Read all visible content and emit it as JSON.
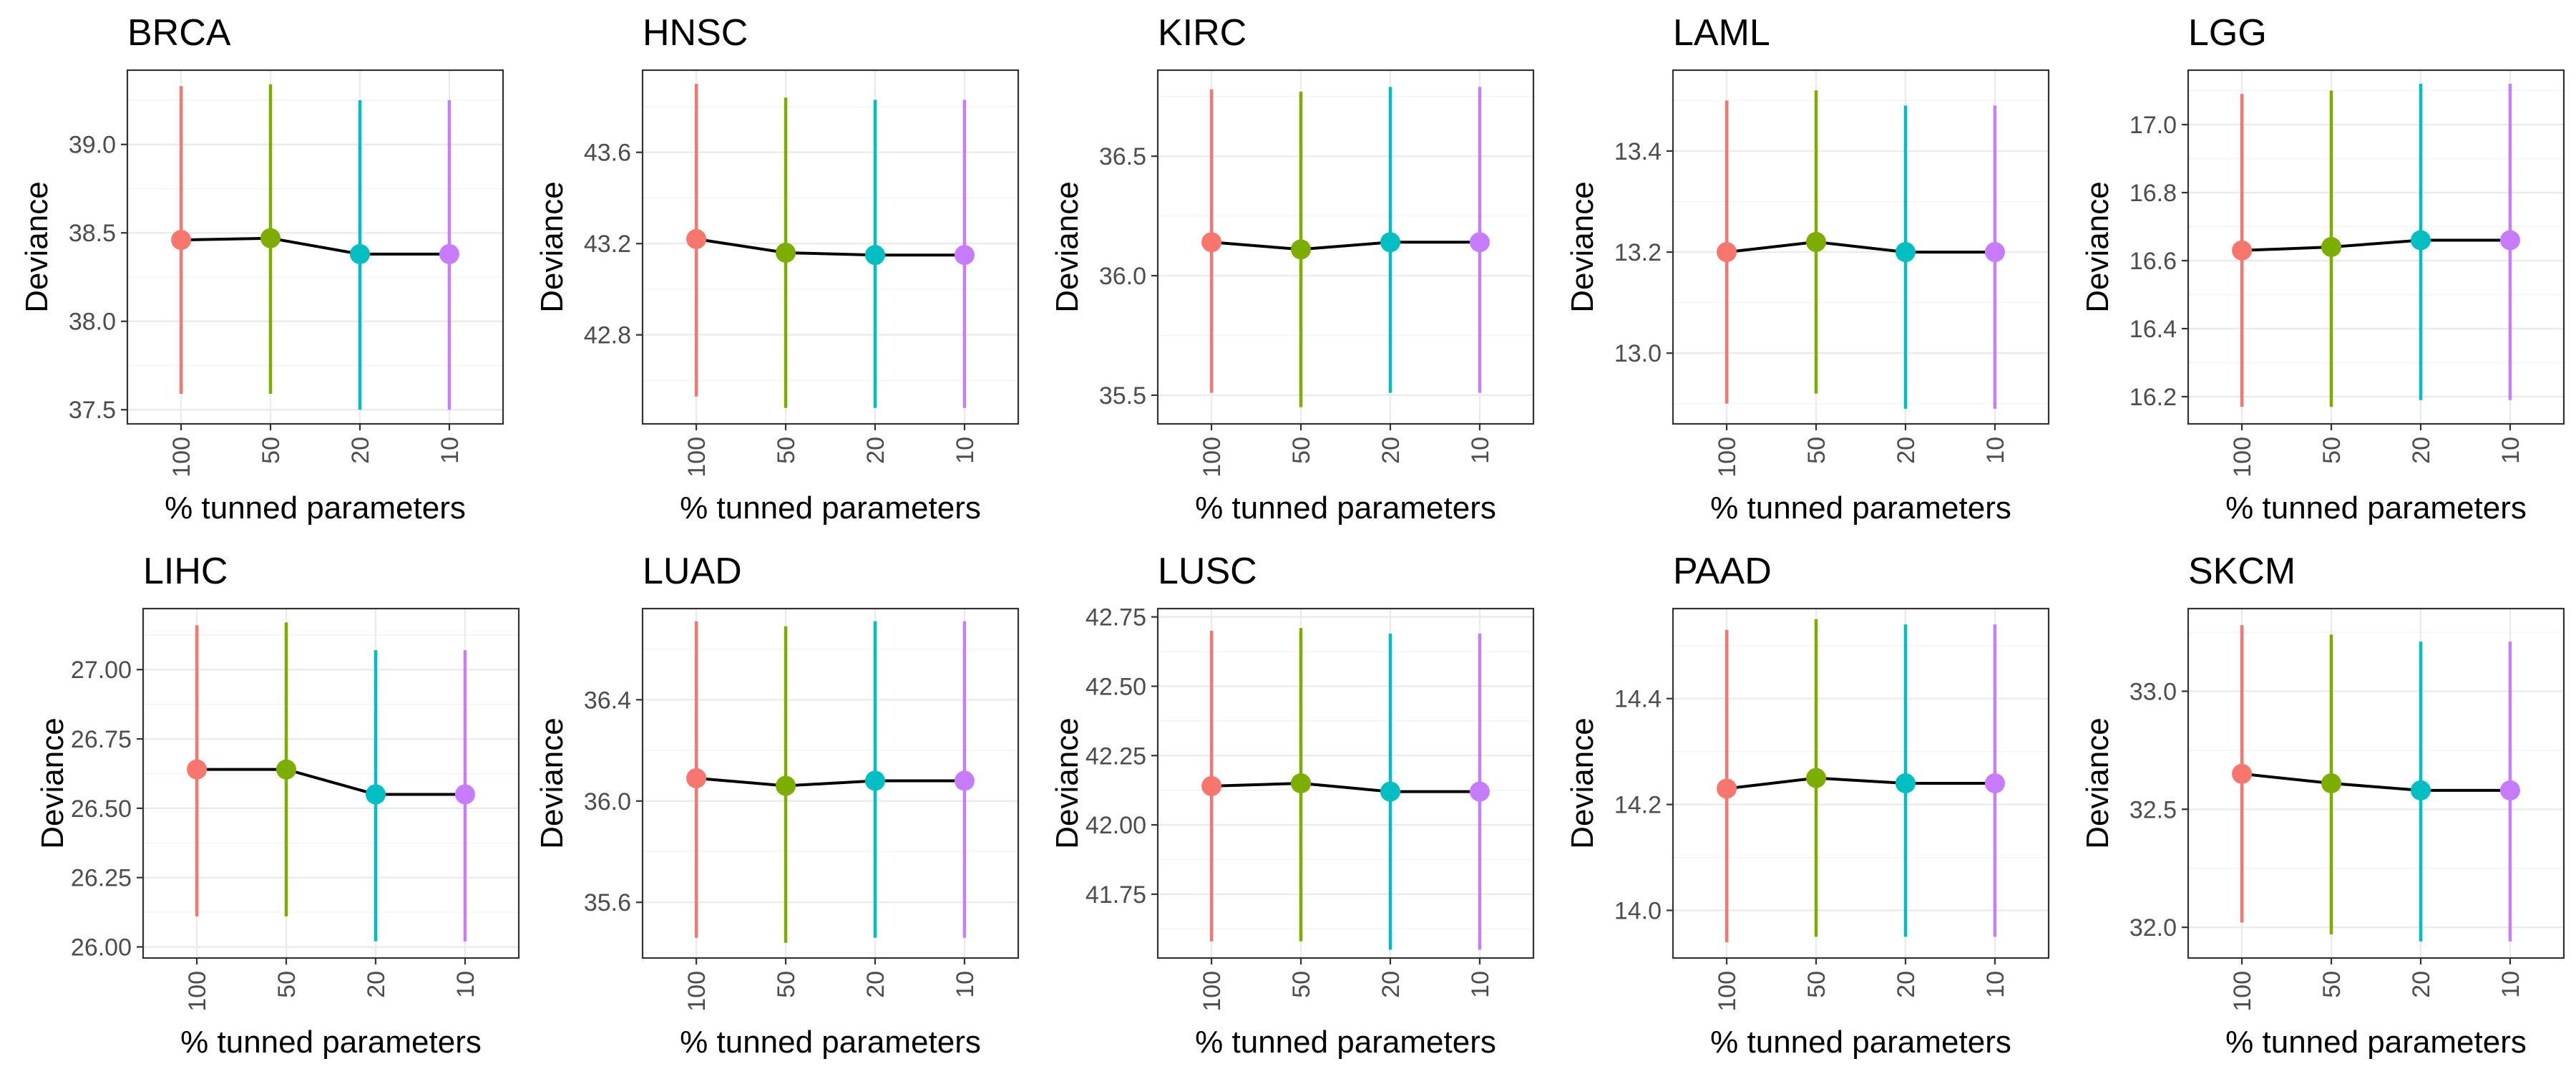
{
  "chart_data": [
    {
      "type": "line",
      "title": "BRCA",
      "xlabel": "% tunned parameters",
      "ylabel": "Deviance",
      "categories": [
        "100",
        "50",
        "20",
        "10"
      ],
      "ylim": [
        37.42,
        39.42
      ],
      "yticks": [
        37.5,
        38.0,
        38.5,
        39.0
      ],
      "ytick_labels": [
        "37.5",
        "38.0",
        "38.5",
        "39.0"
      ],
      "values": [
        38.46,
        38.47,
        38.38,
        38.38
      ],
      "lower": [
        37.59,
        37.59,
        37.5,
        37.5
      ],
      "upper": [
        39.33,
        39.34,
        39.25,
        39.25
      ]
    },
    {
      "type": "line",
      "title": "HNSC",
      "xlabel": "% tunned parameters",
      "ylabel": "Deviance",
      "categories": [
        "100",
        "50",
        "20",
        "10"
      ],
      "ylim": [
        42.41,
        43.96
      ],
      "yticks": [
        42.8,
        43.2,
        43.6
      ],
      "ytick_labels": [
        "42.8",
        "43.2",
        "43.6"
      ],
      "values": [
        43.22,
        43.16,
        43.15,
        43.15
      ],
      "lower": [
        42.53,
        42.48,
        42.48,
        42.48
      ],
      "upper": [
        43.9,
        43.84,
        43.83,
        43.83
      ]
    },
    {
      "type": "line",
      "title": "KIRC",
      "xlabel": "% tunned parameters",
      "ylabel": "Deviance",
      "categories": [
        "100",
        "50",
        "20",
        "10"
      ],
      "ylim": [
        35.38,
        36.86
      ],
      "yticks": [
        35.5,
        36.0,
        36.5
      ],
      "ytick_labels": [
        "35.5",
        "36.0",
        "36.5"
      ],
      "values": [
        36.14,
        36.11,
        36.14,
        36.14
      ],
      "lower": [
        35.51,
        35.45,
        35.51,
        35.51
      ],
      "upper": [
        36.78,
        36.77,
        36.79,
        36.79
      ]
    },
    {
      "type": "line",
      "title": "LAML",
      "xlabel": "% tunned parameters",
      "ylabel": "Deviance",
      "categories": [
        "100",
        "50",
        "20",
        "10"
      ],
      "ylim": [
        12.86,
        13.56
      ],
      "yticks": [
        13.0,
        13.2,
        13.4
      ],
      "ytick_labels": [
        "13.0",
        "13.2",
        "13.4"
      ],
      "values": [
        13.2,
        13.22,
        13.2,
        13.2
      ],
      "lower": [
        12.9,
        12.92,
        12.89,
        12.89
      ],
      "upper": [
        13.5,
        13.52,
        13.49,
        13.49
      ]
    },
    {
      "type": "line",
      "title": "LGG",
      "xlabel": "% tunned parameters",
      "ylabel": "Deviance",
      "categories": [
        "100",
        "50",
        "20",
        "10"
      ],
      "ylim": [
        16.12,
        17.16
      ],
      "yticks": [
        16.2,
        16.4,
        16.6,
        16.8,
        17.0
      ],
      "ytick_labels": [
        "16.2",
        "16.4",
        "16.6",
        "16.8",
        "17.0"
      ],
      "values": [
        16.63,
        16.64,
        16.66,
        16.66
      ],
      "lower": [
        16.17,
        16.17,
        16.19,
        16.19
      ],
      "upper": [
        17.09,
        17.1,
        17.12,
        17.12
      ]
    },
    {
      "type": "line",
      "title": "LIHC",
      "xlabel": "% tunned parameters",
      "ylabel": "Deviance",
      "categories": [
        "100",
        "50",
        "20",
        "10"
      ],
      "ylim": [
        25.96,
        27.22
      ],
      "yticks": [
        26.0,
        26.25,
        26.5,
        26.75,
        27.0
      ],
      "ytick_labels": [
        "26.00",
        "26.25",
        "26.50",
        "26.75",
        "27.00"
      ],
      "values": [
        26.64,
        26.64,
        26.55,
        26.55
      ],
      "lower": [
        26.11,
        26.11,
        26.02,
        26.02
      ],
      "upper": [
        27.16,
        27.17,
        27.07,
        27.07
      ]
    },
    {
      "type": "line",
      "title": "LUAD",
      "xlabel": "% tunned parameters",
      "ylabel": "Deviance",
      "categories": [
        "100",
        "50",
        "20",
        "10"
      ],
      "ylim": [
        35.38,
        36.76
      ],
      "yticks": [
        35.6,
        36.0,
        36.4
      ],
      "ytick_labels": [
        "35.6",
        "36.0",
        "36.4"
      ],
      "values": [
        36.09,
        36.06,
        36.08,
        36.08
      ],
      "lower": [
        35.46,
        35.44,
        35.46,
        35.46
      ],
      "upper": [
        36.71,
        36.69,
        36.71,
        36.71
      ]
    },
    {
      "type": "line",
      "title": "LUSC",
      "xlabel": "% tunned parameters",
      "ylabel": "Deviance",
      "categories": [
        "100",
        "50",
        "20",
        "10"
      ],
      "ylim": [
        41.52,
        42.78
      ],
      "yticks": [
        41.75,
        42.0,
        42.25,
        42.5,
        42.75
      ],
      "ytick_labels": [
        "41.75",
        "42.00",
        "42.25",
        "42.50",
        "42.75"
      ],
      "values": [
        42.14,
        42.15,
        42.12,
        42.12
      ],
      "lower": [
        41.58,
        41.58,
        41.55,
        41.55
      ],
      "upper": [
        42.7,
        42.71,
        42.69,
        42.69
      ]
    },
    {
      "type": "line",
      "title": "PAAD",
      "xlabel": "% tunned parameters",
      "ylabel": "Deviance",
      "categories": [
        "100",
        "50",
        "20",
        "10"
      ],
      "ylim": [
        13.91,
        14.57
      ],
      "yticks": [
        14.0,
        14.2,
        14.4
      ],
      "ytick_labels": [
        "14.0",
        "14.2",
        "14.4"
      ],
      "values": [
        14.23,
        14.25,
        14.24,
        14.24
      ],
      "lower": [
        13.94,
        13.95,
        13.95,
        13.95
      ],
      "upper": [
        14.53,
        14.55,
        14.54,
        14.54
      ]
    },
    {
      "type": "line",
      "title": "SKCM",
      "xlabel": "% tunned parameters",
      "ylabel": "Deviance",
      "categories": [
        "100",
        "50",
        "20",
        "10"
      ],
      "ylim": [
        31.87,
        33.35
      ],
      "yticks": [
        32.0,
        32.5,
        33.0
      ],
      "ytick_labels": [
        "32.0",
        "32.5",
        "33.0"
      ],
      "values": [
        32.65,
        32.61,
        32.58,
        32.58
      ],
      "lower": [
        32.02,
        31.97,
        31.94,
        31.94
      ],
      "upper": [
        33.28,
        33.24,
        33.21,
        33.21
      ]
    }
  ],
  "colors": {
    "100": "#f8766d",
    "50": "#7cae00",
    "20": "#00bfc4",
    "10": "#c77cff",
    "mean_line": "#000000"
  }
}
